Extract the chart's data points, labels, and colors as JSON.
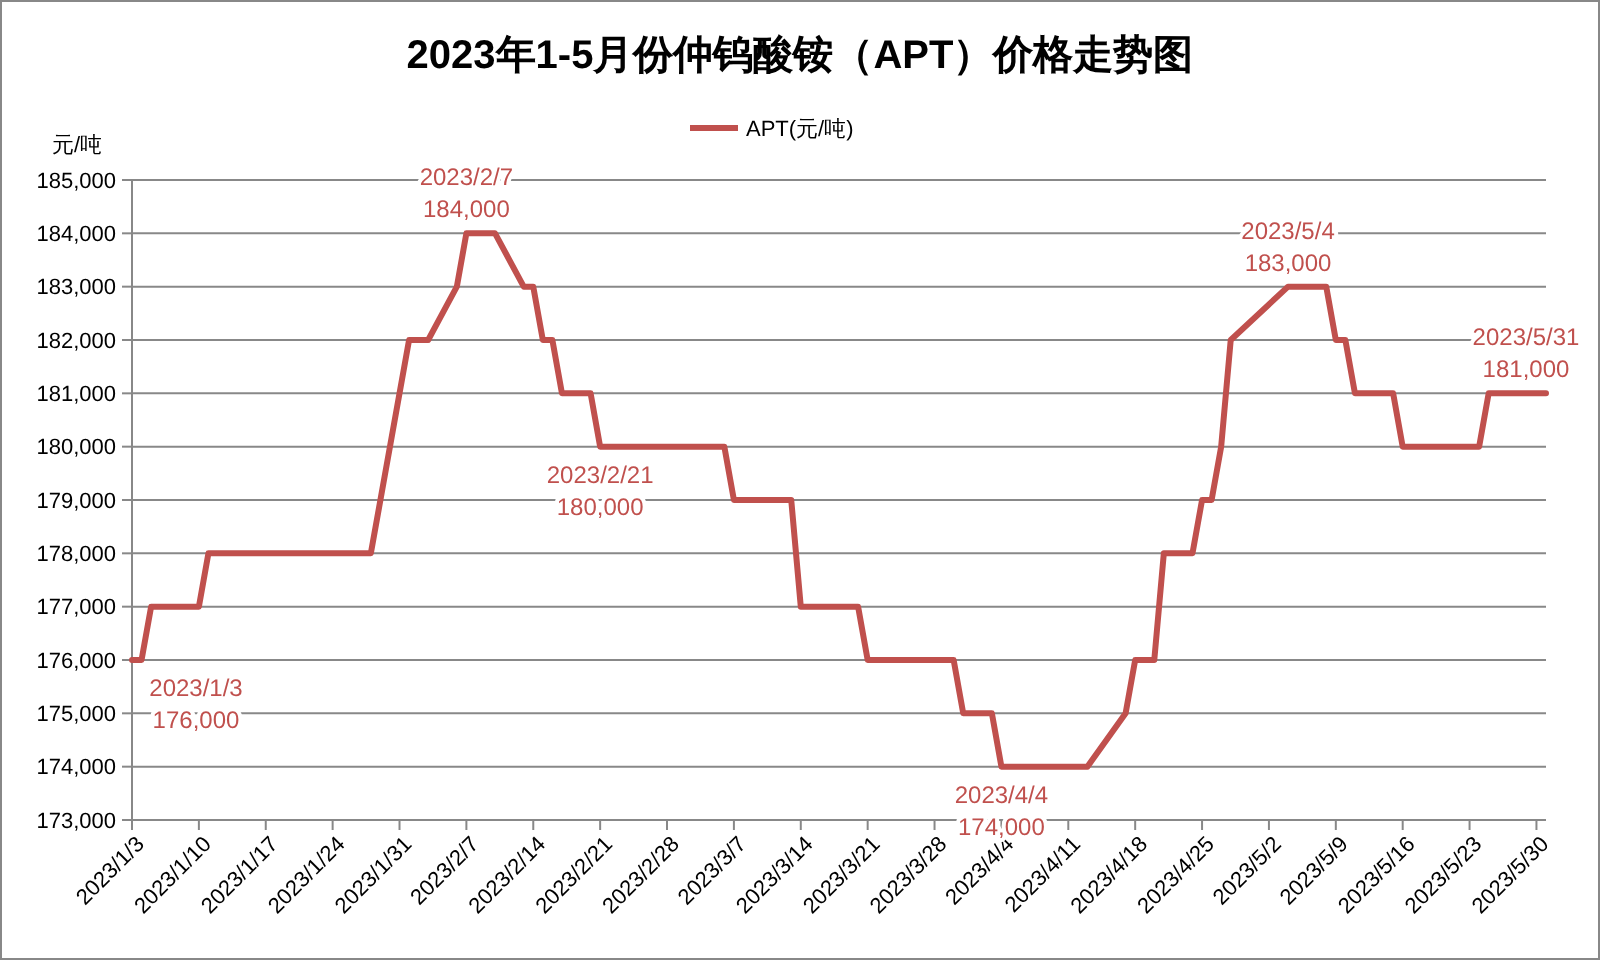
{
  "chart_data": {
    "type": "line",
    "title": "2023年1-5月份仲钨酸铵（APT）价格走势图",
    "ylabel": "元/吨",
    "x": [
      "2023-01-03",
      "2023-01-04",
      "2023-01-05",
      "2023-01-10",
      "2023-01-11",
      "2023-01-28",
      "2023-01-29",
      "2023-02-01",
      "2023-02-03",
      "2023-02-06",
      "2023-02-07",
      "2023-02-10",
      "2023-02-13",
      "2023-02-14",
      "2023-02-15",
      "2023-02-16",
      "2023-02-17",
      "2023-02-20",
      "2023-02-21",
      "2023-03-06",
      "2023-03-07",
      "2023-03-13",
      "2023-03-14",
      "2023-03-20",
      "2023-03-21",
      "2023-03-30",
      "2023-03-31",
      "2023-04-03",
      "2023-04-04",
      "2023-04-13",
      "2023-04-17",
      "2023-04-18",
      "2023-04-20",
      "2023-04-21",
      "2023-04-24",
      "2023-04-25",
      "2023-04-26",
      "2023-04-27",
      "2023-04-28",
      "2023-05-04",
      "2023-05-08",
      "2023-05-09",
      "2023-05-10",
      "2023-05-11",
      "2023-05-15",
      "2023-05-16",
      "2023-05-24",
      "2023-05-25",
      "2023-05-31"
    ],
    "series": [
      {
        "name": "APT(元/吨)",
        "color": "#c0504d",
        "values": [
          176000,
          176000,
          177000,
          177000,
          178000,
          178000,
          179000,
          182000,
          182000,
          183000,
          184000,
          184000,
          183000,
          183000,
          182000,
          182000,
          181000,
          181000,
          180000,
          180000,
          179000,
          179000,
          177000,
          177000,
          176000,
          176000,
          175000,
          175000,
          174000,
          174000,
          175000,
          176000,
          176000,
          178000,
          178000,
          179000,
          179000,
          180000,
          182000,
          183000,
          183000,
          182000,
          182000,
          181000,
          181000,
          180000,
          180000,
          181000,
          181000
        ]
      }
    ],
    "xlim": [
      "2023-01-03",
      "2023-05-31"
    ],
    "xticks": [
      {
        "value": "2023-01-03",
        "label": "2023/1/3"
      },
      {
        "value": "2023-01-10",
        "label": "2023/1/10"
      },
      {
        "value": "2023-01-17",
        "label": "2023/1/17"
      },
      {
        "value": "2023-01-24",
        "label": "2023/1/24"
      },
      {
        "value": "2023-01-31",
        "label": "2023/1/31"
      },
      {
        "value": "2023-02-07",
        "label": "2023/2/7"
      },
      {
        "value": "2023-02-14",
        "label": "2023/2/14"
      },
      {
        "value": "2023-02-21",
        "label": "2023/2/21"
      },
      {
        "value": "2023-02-28",
        "label": "2023/2/28"
      },
      {
        "value": "2023-03-07",
        "label": "2023/3/7"
      },
      {
        "value": "2023-03-14",
        "label": "2023/3/14"
      },
      {
        "value": "2023-03-21",
        "label": "2023/3/21"
      },
      {
        "value": "2023-03-28",
        "label": "2023/3/28"
      },
      {
        "value": "2023-04-04",
        "label": "2023/4/4"
      },
      {
        "value": "2023-04-11",
        "label": "2023/4/11"
      },
      {
        "value": "2023-04-18",
        "label": "2023/4/18"
      },
      {
        "value": "2023-04-25",
        "label": "2023/4/25"
      },
      {
        "value": "2023-05-02",
        "label": "2023/5/2"
      },
      {
        "value": "2023-05-09",
        "label": "2023/5/9"
      },
      {
        "value": "2023-05-16",
        "label": "2023/5/16"
      },
      {
        "value": "2023-05-23",
        "label": "2023/5/23"
      },
      {
        "value": "2023-05-30",
        "label": "2023/5/30"
      }
    ],
    "ylim": [
      173000,
      185000
    ],
    "yticks": [
      {
        "value": 173000,
        "label": "173,000"
      },
      {
        "value": 174000,
        "label": "174,000"
      },
      {
        "value": 175000,
        "label": "175,000"
      },
      {
        "value": 176000,
        "label": "176,000"
      },
      {
        "value": 177000,
        "label": "177,000"
      },
      {
        "value": 178000,
        "label": "178,000"
      },
      {
        "value": 179000,
        "label": "179,000"
      },
      {
        "value": 180000,
        "label": "180,000"
      },
      {
        "value": 181000,
        "label": "181,000"
      },
      {
        "value": 182000,
        "label": "182,000"
      },
      {
        "value": 183000,
        "label": "183,000"
      },
      {
        "value": 184000,
        "label": "184,000"
      },
      {
        "value": 185000,
        "label": "185,000"
      }
    ],
    "grid": "y",
    "legend": "top",
    "marker": "none",
    "line_style": "solid",
    "annotations": [
      {
        "text": "2023/1/3\n176,000",
        "x": "2023-01-03",
        "y": 176000
      },
      {
        "text": "2023/2/7\n184,000",
        "x": "2023-02-07",
        "y": 184000
      },
      {
        "text": "2023/2/21\n180,000",
        "x": "2023-02-21",
        "y": 180000
      },
      {
        "text": "2023/4/4\n174,000",
        "x": "2023-04-04",
        "y": 174000
      },
      {
        "text": "2023/5/4\n183,000",
        "x": "2023-05-04",
        "y": 183000
      },
      {
        "text": "2023/5/31\n181,000",
        "x": "2023-05-31",
        "y": 181000
      }
    ]
  }
}
